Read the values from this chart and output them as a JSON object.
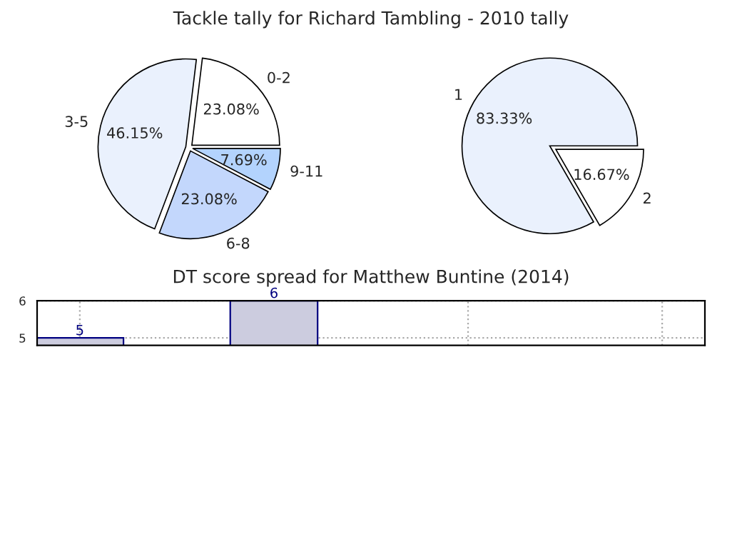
{
  "chart_data": [
    {
      "type": "pie",
      "title": "Tackle tally for Richard Tambling - 2010 tally",
      "categories": [
        "0-2",
        "3-5",
        "6-8",
        "9-11"
      ],
      "values": [
        23.08,
        46.15,
        23.08,
        7.69
      ],
      "colors": [
        "#ffffff",
        "#eaf1fd",
        "#c3d7fc",
        "#b3d3fd"
      ],
      "value_labels": [
        "23.08%",
        "46.15%",
        "23.08%",
        "7.69%"
      ]
    },
    {
      "type": "pie",
      "categories": [
        "1",
        "2"
      ],
      "values": [
        83.33,
        16.67
      ],
      "colors": [
        "#eaf1fd",
        "#ffffff"
      ],
      "value_labels": [
        "83.33%",
        "16.67%"
      ]
    },
    {
      "type": "bar",
      "title": "DT score spread for Matthew Buntine (2014)",
      "categories": [
        null,
        null,
        null,
        null
      ],
      "values": [
        5,
        6,
        null,
        null
      ],
      "color": "#ccccdf",
      "ylim": [
        4.8,
        6
      ],
      "yticks": [
        5,
        6
      ],
      "grid": true,
      "data_labels": true
    }
  ]
}
